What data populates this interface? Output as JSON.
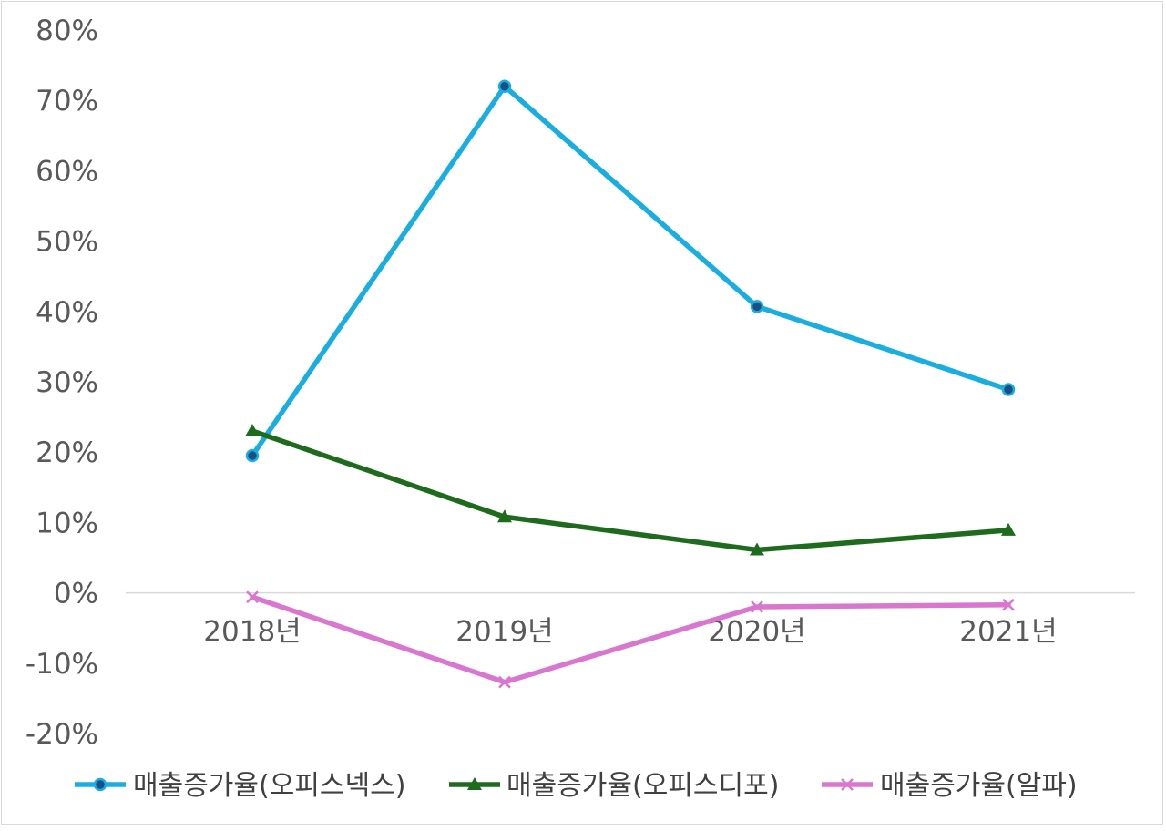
{
  "chart_data": {
    "type": "line",
    "title": "",
    "xlabel": "",
    "ylabel": "",
    "categories": [
      "2018년",
      "2019년",
      "2020년",
      "2021년"
    ],
    "y_ticks": [
      "-20%",
      "-10%",
      "0%",
      "10%",
      "20%",
      "30%",
      "40%",
      "50%",
      "60%",
      "70%",
      "80%"
    ],
    "ylim": [
      -20,
      80
    ],
    "grid": false,
    "legend_position": "bottom",
    "series": [
      {
        "name": "매출증가율(오피스넥스)",
        "values": [
          19.5,
          72.0,
          40.7,
          28.9
        ],
        "color": "#1aaee0",
        "marker": "circle"
      },
      {
        "name": "매출증가율(오피스디포)",
        "values": [
          23.0,
          10.8,
          6.1,
          8.9
        ],
        "color": "#1e6b1e",
        "marker": "triangle"
      },
      {
        "name": "매출증가율(알파)",
        "values": [
          -0.6,
          -12.7,
          -2.0,
          -1.7
        ],
        "color": "#d977d0",
        "marker": "x"
      }
    ]
  }
}
